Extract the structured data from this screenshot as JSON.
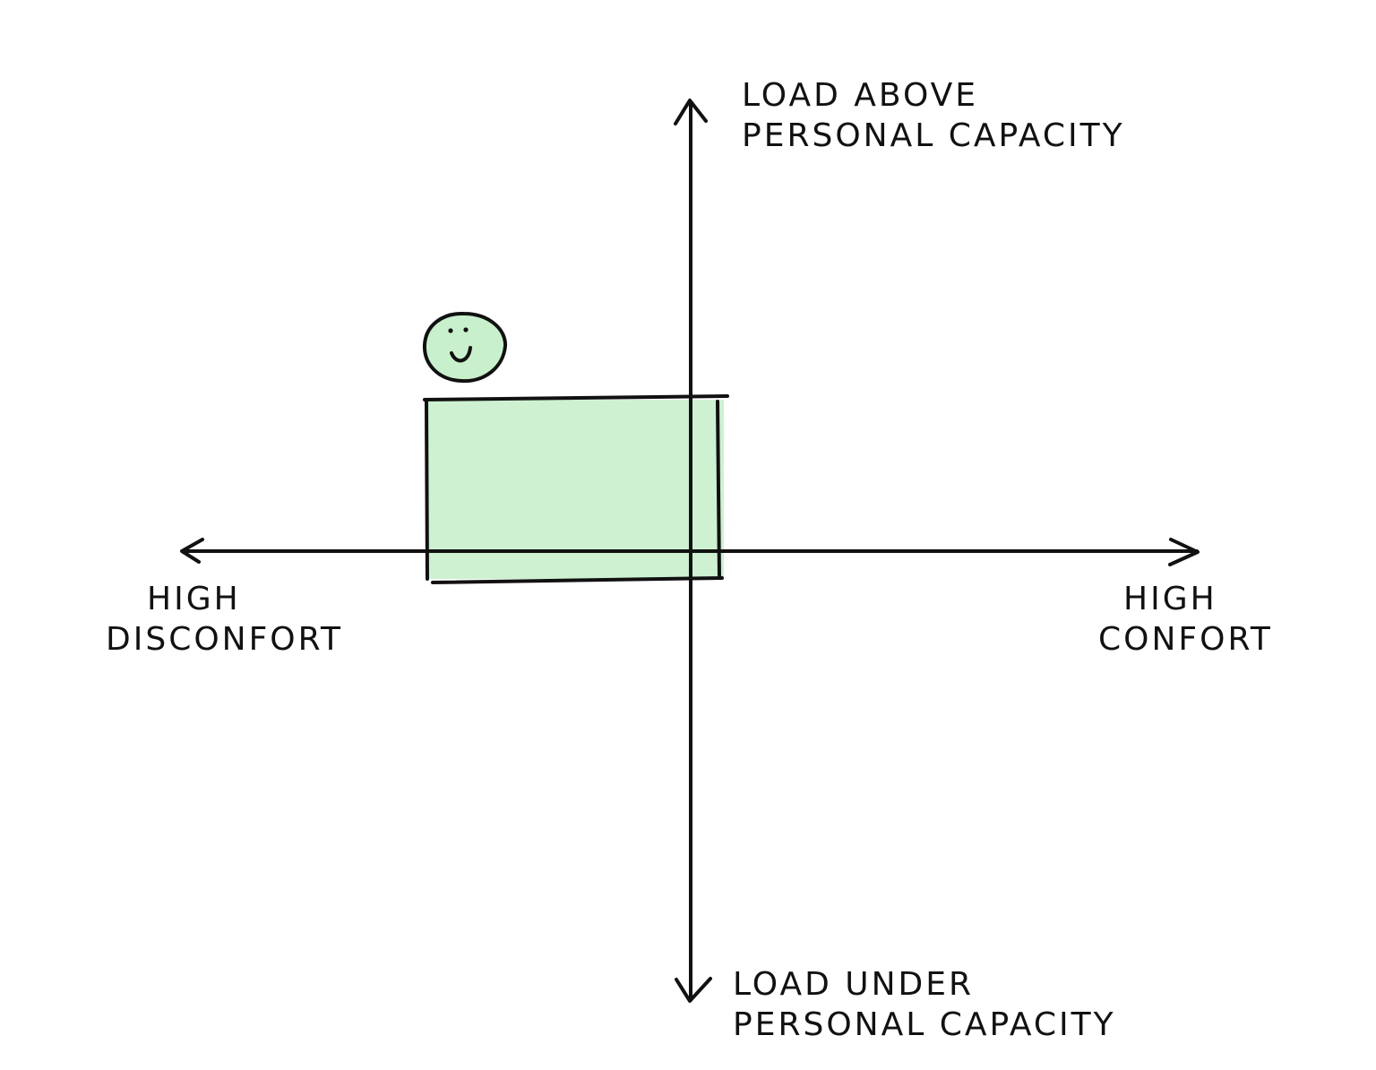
{
  "axes": {
    "vertical": {
      "top_label": [
        "LOAD ABOVE",
        "PERSONAL CAPACITY"
      ],
      "bottom_label": [
        "LOAD UNDER",
        "PERSONAL CAPACITY"
      ]
    },
    "horizontal": {
      "left_label": [
        "HIGH",
        "DISCONFORT"
      ],
      "right_label": [
        "HIGH",
        "CONFORT"
      ]
    }
  },
  "comfort_zone": {
    "fill_color": "#c8f0cc",
    "marker_icon": "smiley-face-icon"
  }
}
